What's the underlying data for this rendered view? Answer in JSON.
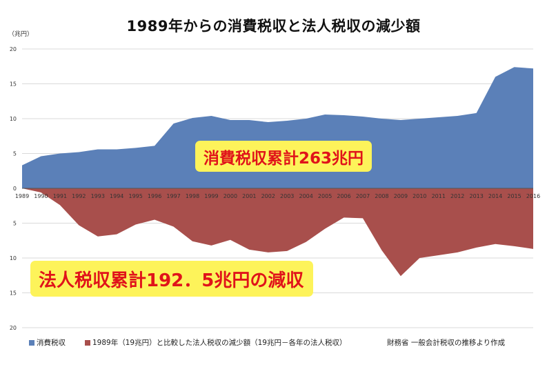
{
  "page": {
    "title": "1989年からの消費税収と法人税収の減少額",
    "unit": "（兆円）",
    "source_note": "財務省 一般会計税収の推移より作成"
  },
  "callouts": {
    "consumption_total": "消費税収累計263兆円",
    "corporate_total": "法人税収累計192．5兆円の減収"
  },
  "legend": {
    "consumption": "消費税収",
    "corporate": "1989年（19兆円）と比較した法人税収の減少額（19兆円－各年の法人税収）"
  },
  "colors": {
    "consumption": "#5b80b8",
    "corporate": "#a84f4c",
    "callout_bg": "#fdf35a",
    "callout_text": "#e0131a",
    "grid": "#d9d9d9"
  },
  "chart_data": {
    "type": "area",
    "title": "1989年からの消費税収と法人税収の減少額",
    "ylabel": "（兆円）",
    "x": [
      "1989",
      "1990",
      "1991",
      "1992",
      "1993",
      "1994",
      "1995",
      "1996",
      "1997",
      "1998",
      "1999",
      "2000",
      "2001",
      "2002",
      "2003",
      "2004",
      "2005",
      "2006",
      "2007",
      "2008",
      "2009",
      "2010",
      "2011",
      "2012",
      "2013",
      "2014",
      "2015",
      "2016"
    ],
    "y_ticks_above": [
      "20",
      "15",
      "10",
      "5",
      "0"
    ],
    "y_ticks_below": [
      "5",
      "10",
      "15",
      "20"
    ],
    "ylim": [
      -20,
      20
    ],
    "grid": true,
    "legend_position": "bottom",
    "series": [
      {
        "name": "消費税収",
        "direction": "up",
        "values": [
          3.3,
          4.6,
          5.0,
          5.2,
          5.6,
          5.6,
          5.8,
          6.1,
          9.3,
          10.1,
          10.4,
          9.8,
          9.8,
          9.5,
          9.7,
          10.0,
          10.6,
          10.5,
          10.3,
          10.0,
          9.8,
          10.0,
          10.2,
          10.4,
          10.8,
          16.0,
          17.4,
          17.2
        ]
      },
      {
        "name": "1989年（19兆円）と比較した法人税収の減少額（19兆円－各年の法人税収）",
        "direction": "down",
        "values": [
          0,
          0.6,
          2.4,
          5.3,
          6.9,
          6.6,
          5.2,
          4.5,
          5.5,
          7.6,
          8.2,
          7.4,
          8.8,
          9.2,
          9.0,
          7.7,
          5.8,
          4.2,
          4.3,
          8.9,
          12.6,
          10.0,
          9.6,
          9.2,
          8.5,
          8.0,
          8.3,
          8.7
        ]
      }
    ]
  }
}
